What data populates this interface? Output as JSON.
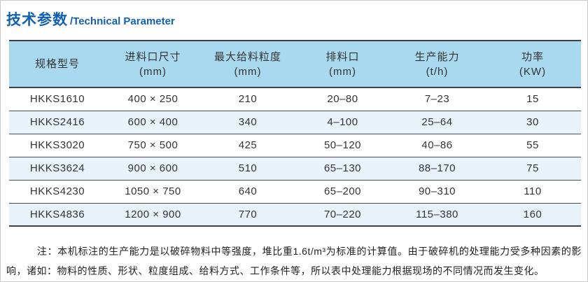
{
  "page": {
    "title_zh": "技术参数",
    "title_en": "/Technical Parameter"
  },
  "table": {
    "columns": [
      {
        "label": "规格型号",
        "unit": ""
      },
      {
        "label": "进料口尺寸",
        "unit": "(mm)"
      },
      {
        "label": "最大给料粒度",
        "unit": "(mm)"
      },
      {
        "label": "排料口",
        "unit": "(mm)"
      },
      {
        "label": "生产能力",
        "unit": "(t/h)"
      },
      {
        "label": "功率",
        "unit": "(KW)"
      }
    ],
    "rows": [
      [
        "HKKS1610",
        "400 × 250",
        "210",
        "20–80",
        "7–23",
        "15"
      ],
      [
        "HKKS2416",
        "600 × 400",
        "340",
        "4–100",
        "25–64",
        "30"
      ],
      [
        "HKKS3020",
        "750 × 500",
        "425",
        "50–120",
        "40–86",
        "55"
      ],
      [
        "HKKS3624",
        "900 × 600",
        "510",
        "65–130",
        "88–170",
        "75"
      ],
      [
        "HKKS4230",
        "1050 × 750",
        "640",
        "65–200",
        "90–310",
        "110"
      ],
      [
        "HKKS4836",
        "1200 × 900",
        "770",
        "70–220",
        "115–380",
        "160"
      ]
    ]
  },
  "note": "注：本机标注的生产能力是以破碎物料中等强度，堆比重1.6t/m³为标准的计算值。由于破碎机的处理能力受多种因素的影响，诸如：物料的性质、形状、粒度组成、给料方式、工作条件等，所以表中处理能力根据现场的不同情况而发生变化。",
  "colors": {
    "title_blue": "#1261b1",
    "header_bg": "#a9d9ee",
    "alt_row_bg": "#e7f2f9",
    "border_dark": "#3d4045",
    "text": "#333333"
  }
}
